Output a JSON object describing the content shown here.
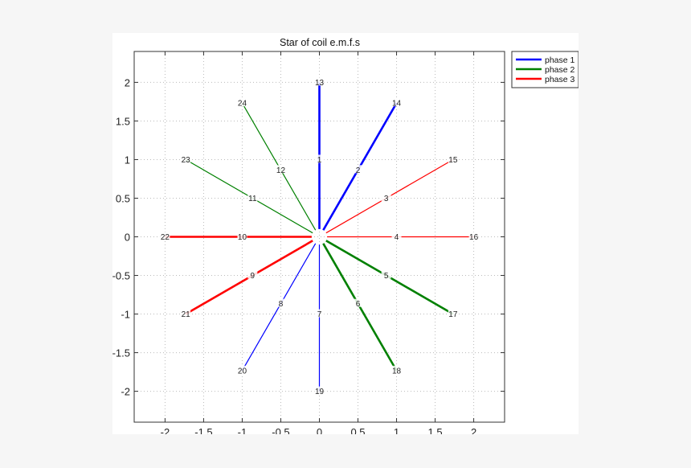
{
  "chart_data": {
    "type": "line",
    "title": "Star of coil e.m.f.s",
    "xlabel": "",
    "ylabel": "",
    "xlim": [
      -2.4,
      2.4
    ],
    "ylim": [
      -2.4,
      2.4
    ],
    "grid": true,
    "legend_position": "outside-top-right",
    "x_ticks": [
      -2,
      -1.5,
      -1,
      -0.5,
      0,
      0.5,
      1,
      1.5,
      2
    ],
    "x_tick_labels": [
      "-2",
      "-1.5",
      "-1",
      "-0.5",
      "0",
      "0.5",
      "1",
      "1.5",
      "2"
    ],
    "y_ticks": [
      2,
      1.5,
      1,
      0.5,
      0,
      -0.5,
      -1,
      -1.5,
      -2
    ],
    "y_tick_labels": [
      "2",
      "1.5",
      "1",
      "0.5",
      "0",
      "-0.5",
      "-1",
      "-1.5",
      "-2"
    ],
    "legend": [
      {
        "name": "phase 1",
        "color": "#0000ff"
      },
      {
        "name": "phase 2",
        "color": "#008000"
      },
      {
        "name": "phase 3",
        "color": "#ff0000"
      }
    ],
    "series": [
      {
        "name": "phase 1",
        "color": "#0000ff",
        "thick_coils": [
          1,
          2
        ],
        "thin_coils": [
          7,
          8
        ]
      },
      {
        "name": "phase 2",
        "color": "#008000",
        "thick_coils": [
          5,
          6
        ],
        "thin_coils": [
          11,
          12
        ]
      },
      {
        "name": "phase 3",
        "color": "#ff0000",
        "thick_coils": [
          9,
          10
        ],
        "thin_coils": [
          3,
          4
        ]
      }
    ],
    "points": [
      {
        "label": "1",
        "x": 0.0,
        "y": 1.0
      },
      {
        "label": "2",
        "x": 0.5,
        "y": 0.866
      },
      {
        "label": "3",
        "x": 0.866,
        "y": 0.5
      },
      {
        "label": "4",
        "x": 1.0,
        "y": 0.0
      },
      {
        "label": "5",
        "x": 0.866,
        "y": -0.5
      },
      {
        "label": "6",
        "x": 0.5,
        "y": -0.866
      },
      {
        "label": "7",
        "x": 0.0,
        "y": -1.0
      },
      {
        "label": "8",
        "x": -0.5,
        "y": -0.866
      },
      {
        "label": "9",
        "x": -0.866,
        "y": -0.5
      },
      {
        "label": "10",
        "x": -1.0,
        "y": 0.0
      },
      {
        "label": "11",
        "x": -0.866,
        "y": 0.5
      },
      {
        "label": "12",
        "x": -0.5,
        "y": 0.866
      },
      {
        "label": "13",
        "x": 0.0,
        "y": 2.0
      },
      {
        "label": "14",
        "x": 1.0,
        "y": 1.732
      },
      {
        "label": "15",
        "x": 1.732,
        "y": 1.0
      },
      {
        "label": "16",
        "x": 2.0,
        "y": 0.0
      },
      {
        "label": "17",
        "x": 1.732,
        "y": -1.0
      },
      {
        "label": "18",
        "x": 1.0,
        "y": -1.732
      },
      {
        "label": "19",
        "x": 0.0,
        "y": -2.0
      },
      {
        "label": "20",
        "x": -1.0,
        "y": -1.732
      },
      {
        "label": "21",
        "x": -1.732,
        "y": -1.0
      },
      {
        "label": "22",
        "x": -2.0,
        "y": 0.0
      },
      {
        "label": "23",
        "x": -1.732,
        "y": 1.0
      },
      {
        "label": "24",
        "x": -1.0,
        "y": 1.732
      }
    ],
    "rays": [
      {
        "from": 0,
        "to": [
          0.0,
          2.0
        ],
        "color": "#0000ff",
        "width": 2.6,
        "through": [
          "1",
          "13"
        ]
      },
      {
        "from": 0,
        "to": [
          1.0,
          1.732
        ],
        "color": "#0000ff",
        "width": 2.6,
        "through": [
          "2",
          "14"
        ]
      },
      {
        "from": 0,
        "to": [
          1.732,
          1.0
        ],
        "color": "#ff0000",
        "width": 1.2,
        "through": [
          "3",
          "15"
        ]
      },
      {
        "from": 0,
        "to": [
          2.0,
          0.0
        ],
        "color": "#ff0000",
        "width": 1.2,
        "through": [
          "4",
          "16"
        ]
      },
      {
        "from": 0,
        "to": [
          1.732,
          -1.0
        ],
        "color": "#008000",
        "width": 2.6,
        "through": [
          "5",
          "17"
        ]
      },
      {
        "from": 0,
        "to": [
          1.0,
          -1.732
        ],
        "color": "#008000",
        "width": 2.6,
        "through": [
          "6",
          "18"
        ]
      },
      {
        "from": 0,
        "to": [
          0.0,
          -2.0
        ],
        "color": "#0000ff",
        "width": 1.2,
        "through": [
          "7",
          "19"
        ]
      },
      {
        "from": 0,
        "to": [
          -1.0,
          -1.732
        ],
        "color": "#0000ff",
        "width": 1.2,
        "through": [
          "8",
          "20"
        ]
      },
      {
        "from": 0,
        "to": [
          -1.732,
          -1.0
        ],
        "color": "#ff0000",
        "width": 2.6,
        "through": [
          "9",
          "21"
        ]
      },
      {
        "from": 0,
        "to": [
          -2.0,
          0.0
        ],
        "color": "#ff0000",
        "width": 2.6,
        "through": [
          "10",
          "22"
        ]
      },
      {
        "from": 0,
        "to": [
          -1.732,
          1.0
        ],
        "color": "#008000",
        "width": 1.2,
        "through": [
          "11",
          "23"
        ]
      },
      {
        "from": 0,
        "to": [
          -1.0,
          1.732
        ],
        "color": "#008000",
        "width": 1.2,
        "through": [
          "12",
          "24"
        ]
      }
    ]
  },
  "colors": {
    "page_background": "#f6f6f6",
    "figure_background": "#ffffff",
    "axis": "#333333",
    "grid": "#bbbbbb"
  }
}
